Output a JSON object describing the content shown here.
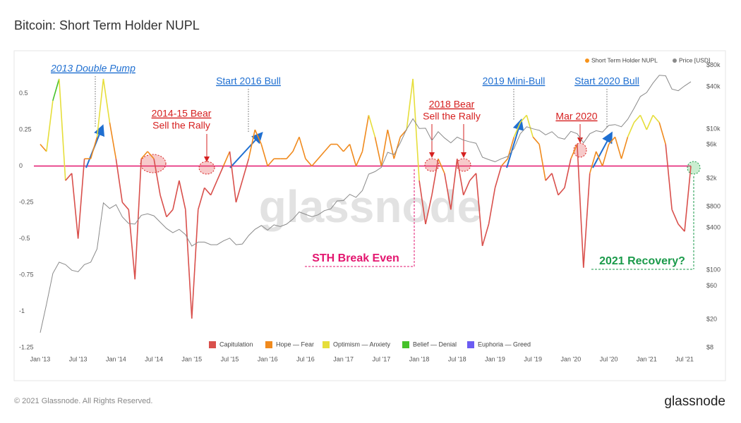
{
  "chart_data": {
    "type": "line",
    "title": "Bitcoin: Short Term Holder NUPL",
    "watermark": "glassnode",
    "x": [
      "2013-01",
      "2013-02",
      "2013-03",
      "2013-04",
      "2013-05",
      "2013-06",
      "2013-07",
      "2013-08",
      "2013-09",
      "2013-10",
      "2013-11",
      "2013-12",
      "2014-01",
      "2014-02",
      "2014-03",
      "2014-04",
      "2014-05",
      "2014-06",
      "2014-07",
      "2014-08",
      "2014-09",
      "2014-10",
      "2014-11",
      "2014-12",
      "2015-01",
      "2015-02",
      "2015-03",
      "2015-04",
      "2015-05",
      "2015-06",
      "2015-07",
      "2015-08",
      "2015-09",
      "2015-10",
      "2015-11",
      "2015-12",
      "2016-01",
      "2016-02",
      "2016-03",
      "2016-04",
      "2016-05",
      "2016-06",
      "2016-07",
      "2016-08",
      "2016-09",
      "2016-10",
      "2016-11",
      "2016-12",
      "2017-01",
      "2017-02",
      "2017-03",
      "2017-04",
      "2017-05",
      "2017-06",
      "2017-07",
      "2017-08",
      "2017-09",
      "2017-10",
      "2017-11",
      "2017-12",
      "2018-01",
      "2018-02",
      "2018-03",
      "2018-04",
      "2018-05",
      "2018-06",
      "2018-07",
      "2018-08",
      "2018-09",
      "2018-10",
      "2018-11",
      "2018-12",
      "2019-01",
      "2019-02",
      "2019-03",
      "2019-04",
      "2019-05",
      "2019-06",
      "2019-07",
      "2019-08",
      "2019-09",
      "2019-10",
      "2019-11",
      "2019-12",
      "2020-01",
      "2020-02",
      "2020-03",
      "2020-04",
      "2020-05",
      "2020-06",
      "2020-07",
      "2020-08",
      "2020-09",
      "2020-10",
      "2020-11",
      "2020-12",
      "2021-01",
      "2021-02",
      "2021-03",
      "2021-04",
      "2021-05",
      "2021-06",
      "2021-07",
      "2021-08"
    ],
    "series": [
      {
        "name": "Short Term Holder NUPL",
        "color": "#f7931a",
        "values": [
          0.15,
          0.1,
          0.45,
          0.6,
          -0.1,
          -0.05,
          -0.5,
          0.05,
          0.05,
          0.2,
          0.6,
          0.3,
          0.05,
          -0.25,
          -0.3,
          -0.78,
          0.05,
          0.1,
          0.05,
          -0.2,
          -0.35,
          -0.3,
          -0.1,
          -0.3,
          -1.05,
          -0.3,
          -0.15,
          -0.2,
          -0.1,
          0,
          0.1,
          -0.25,
          -0.1,
          0.05,
          0.25,
          0.15,
          0,
          0.05,
          0.05,
          0.05,
          0.1,
          0.2,
          0.05,
          0,
          0.05,
          0.1,
          0.15,
          0.15,
          0.1,
          0.15,
          0,
          0.1,
          0.35,
          0.2,
          0,
          0.25,
          0.05,
          0.2,
          0.25,
          0.6,
          -0.1,
          -0.4,
          -0.2,
          0.05,
          -0.05,
          -0.3,
          0.05,
          -0.2,
          -0.1,
          -0.05,
          -0.55,
          -0.4,
          -0.15,
          0,
          0.05,
          0.2,
          0.3,
          0.35,
          0.2,
          0.15,
          -0.1,
          -0.05,
          -0.2,
          -0.15,
          0.05,
          0.15,
          -0.7,
          -0.05,
          0.1,
          0,
          0.15,
          0.2,
          0.05,
          0.2,
          0.3,
          0.35,
          0.25,
          0.35,
          0.3,
          0.15,
          -0.3,
          -0.4,
          -0.45,
          0
        ]
      },
      {
        "name": "Price [USD]",
        "color": "#8a8a8a",
        "axis": "y2",
        "values": [
          13,
          33,
          90,
          130,
          120,
          100,
          95,
          120,
          130,
          200,
          900,
          750,
          850,
          570,
          460,
          450,
          600,
          630,
          590,
          480,
          390,
          340,
          380,
          320,
          220,
          250,
          250,
          230,
          230,
          260,
          285,
          230,
          235,
          310,
          380,
          430,
          370,
          440,
          415,
          450,
          530,
          670,
          620,
          575,
          610,
          700,
          740,
          960,
          970,
          1190,
          1080,
          1350,
          2300,
          2500,
          2870,
          4700,
          4340,
          6400,
          10000,
          14000,
          10200,
          10300,
          6900,
          9200,
          7500,
          6400,
          7700,
          7000,
          6600,
          6300,
          4000,
          3700,
          3450,
          3800,
          4100,
          5300,
          8600,
          10800,
          10100,
          9600,
          8300,
          9200,
          7600,
          7200,
          9300,
          8600,
          6400,
          8600,
          9500,
          9100,
          11300,
          11600,
          10800,
          13800,
          19700,
          29000,
          33000,
          45000,
          58000,
          57000,
          37000,
          35000,
          41000,
          47000
        ]
      }
    ],
    "zones": [
      {
        "name": "Capitulation",
        "color": "#d9504c",
        "min": null
      },
      {
        "name": "Hope — Fear",
        "color": "#f08a1d",
        "min": 0
      },
      {
        "name": "Optimism — Anxiety",
        "color": "#e6de3a",
        "min": 0.25
      },
      {
        "name": "Belief — Denial",
        "color": "#46c22a",
        "min": 0.5
      },
      {
        "name": "Euphoria — Greed",
        "color": "#6b5cf2",
        "min": 0.75
      }
    ],
    "reference_lines": [
      {
        "value": 0,
        "color": "#e3166f"
      }
    ],
    "xlim": [
      "2012-12",
      "2021-08"
    ],
    "xticks": [
      {
        "value": "2013-01",
        "label": "Jan '13"
      },
      {
        "value": "2013-07",
        "label": "Jul '13"
      },
      {
        "value": "2014-01",
        "label": "Jan '14"
      },
      {
        "value": "2014-07",
        "label": "Jul '14"
      },
      {
        "value": "2015-01",
        "label": "Jan '15"
      },
      {
        "value": "2015-07",
        "label": "Jul '15"
      },
      {
        "value": "2016-01",
        "label": "Jan '16"
      },
      {
        "value": "2016-07",
        "label": "Jul '16"
      },
      {
        "value": "2017-01",
        "label": "Jan '17"
      },
      {
        "value": "2017-07",
        "label": "Jul '17"
      },
      {
        "value": "2018-01",
        "label": "Jan '18"
      },
      {
        "value": "2018-07",
        "label": "Jul '18"
      },
      {
        "value": "2019-01",
        "label": "Jan '19"
      },
      {
        "value": "2019-07",
        "label": "Jul '19"
      },
      {
        "value": "2020-01",
        "label": "Jan '20"
      },
      {
        "value": "2020-07",
        "label": "Jul '20"
      },
      {
        "value": "2021-01",
        "label": "Jan '21"
      },
      {
        "value": "2021-07",
        "label": "Jul '21"
      }
    ],
    "ylim": [
      -1.25,
      0.75
    ],
    "yticks": [
      0.5,
      0.25,
      0,
      -0.25,
      -0.5,
      -0.75,
      -1,
      -1.25
    ],
    "y2lim": [
      8,
      105000
    ],
    "y2scale": "log",
    "y2ticks": [
      {
        "value": 80000,
        "label": "$80k"
      },
      {
        "value": 40000,
        "label": "$40k"
      },
      {
        "value": 10000,
        "label": "$10k"
      },
      {
        "value": 6000,
        "label": "$6k"
      },
      {
        "value": 2000,
        "label": "$2k"
      },
      {
        "value": 800,
        "label": "$800"
      },
      {
        "value": 400,
        "label": "$400"
      },
      {
        "value": 100,
        "label": "$100"
      },
      {
        "value": 60,
        "label": "$60"
      },
      {
        "value": 20,
        "label": "$20"
      },
      {
        "value": 8,
        "label": "$8"
      }
    ],
    "grid": false,
    "legend": "top-right",
    "annotations": [
      {
        "lines": [
          "2013 Double Pump"
        ]
      },
      {
        "lines": [
          "2014-15 Bear",
          "Sell the Rally"
        ]
      },
      {
        "lines": [
          "Start 2016 Bull"
        ]
      },
      {
        "lines": [
          "2018 Bear",
          "Sell the Rally"
        ]
      },
      {
        "lines": [
          "2019 Mini-Bull"
        ]
      },
      {
        "lines": [
          "Start 2020 Bull"
        ]
      },
      {
        "lines": [
          "Mar 2020"
        ]
      },
      {
        "lines": [
          "STH Break Even"
        ]
      },
      {
        "lines": [
          "2021 Recovery?"
        ]
      }
    ]
  },
  "footer": {
    "copyright": "© 2021 Glassnode. All Rights Reserved.",
    "brand": "glassnode"
  }
}
